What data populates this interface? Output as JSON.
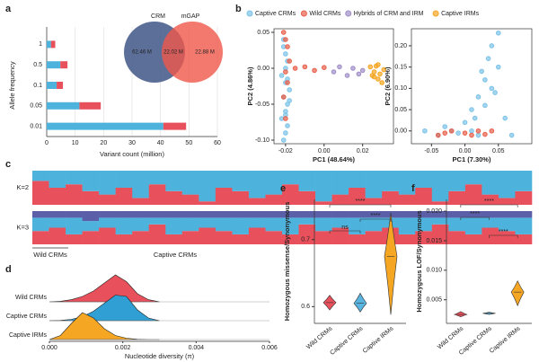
{
  "chart_data": [
    {
      "type": "bar",
      "panel": "a",
      "orientation": "horizontal",
      "x_label": "Variant count (million)",
      "y_label": "Allele frequency",
      "categories": [
        "1",
        "0.5",
        "0.1",
        "0.05",
        "0.01"
      ],
      "series": [
        {
          "color": "#4eb3dc",
          "values": [
            1.5,
            4.8,
            3.5,
            11.5,
            41
          ]
        },
        {
          "color": "#e8505b",
          "values": [
            1.5,
            2.5,
            2.2,
            7.5,
            8
          ]
        }
      ],
      "xlim": [
        0,
        60
      ],
      "xticks": [
        0,
        10,
        20,
        30,
        40,
        50,
        60
      ],
      "grid": true
    },
    {
      "type": "venn",
      "sets": [
        "CRM",
        "mGAP"
      ],
      "colors": [
        "#4a5f8e",
        "#f0584a"
      ],
      "values": [
        62.46,
        22.02,
        22.88
      ],
      "value_labels": [
        "62.46 M",
        "22.02 M",
        "22.88 M"
      ]
    },
    {
      "type": "scatter",
      "panel": "b",
      "x_label": "PC1 (48.64%)",
      "y_label": "PC2 (4.86%)",
      "series": [
        {
          "name": "Captive CRMs",
          "color": "#7cc3e8",
          "x": [
            -0.021,
            -0.02,
            -0.019,
            -0.022,
            -0.02,
            -0.018,
            -0.021,
            -0.019,
            -0.02,
            -0.022,
            -0.019,
            -0.02,
            -0.021,
            -0.018,
            -0.02,
            -0.019,
            -0.021,
            -0.02
          ],
          "y": [
            0.04,
            0.02,
            0.01,
            -0.01,
            -0.02,
            -0.03,
            -0.04,
            -0.05,
            -0.06,
            -0.07,
            -0.08,
            -0.09,
            -0.1,
            -0.045,
            0.0,
            -0.015,
            0.03,
            -0.065
          ]
        },
        {
          "name": "Wild CRMs",
          "color": "#e8604b",
          "x": [
            -0.021,
            -0.02,
            -0.019,
            -0.018,
            -0.02,
            -0.019,
            -0.015,
            -0.01,
            -0.005,
            0.0,
            -0.021,
            -0.02
          ],
          "y": [
            0.05,
            0.04,
            0.03,
            0.01,
            -0.005,
            -0.02,
            0.0,
            0.002,
            -0.003,
            0.001,
            -0.04,
            -0.07
          ]
        },
        {
          "name": "Hybrids of CRM and IRM",
          "color": "#a08fc8",
          "x": [
            0.005,
            0.008,
            0.012,
            0.015,
            0.018,
            0.02
          ],
          "y": [
            -0.005,
            0.002,
            -0.01,
            0.0,
            -0.008,
            -0.003
          ]
        },
        {
          "name": "Captive IRMs",
          "color": "#f5a623",
          "x": [
            0.024,
            0.025,
            0.026,
            0.027,
            0.028,
            0.029,
            0.03,
            0.031,
            0.026,
            0.028
          ],
          "y": [
            0.002,
            -0.01,
            -0.005,
            0.003,
            -0.015,
            -0.008,
            -0.02,
            -0.002,
            -0.012,
            0.005
          ]
        }
      ],
      "xlim": [
        -0.026,
        0.036
      ],
      "ylim": [
        -0.105,
        0.055
      ],
      "xticks": [
        -0.02,
        {
          "value": 0,
          "label": "0.00"
        },
        0.02
      ],
      "yticks": [
        {
          "value": -0.1,
          "label": "-0.10"
        },
        -0.05,
        {
          "value": 0,
          "label": "0.00"
        },
        0.05
      ]
    },
    {
      "type": "scatter",
      "x_label": "PC1 (7.30%)",
      "y_label": "PC2 (6.90%)",
      "series": [
        {
          "color": "#7cc3e8",
          "x": [
            -0.06,
            -0.04,
            -0.03,
            -0.02,
            -0.01,
            0.0,
            0.01,
            0.02,
            0.03,
            0.04,
            0.05,
            0.06,
            0.01,
            0.02,
            0.03,
            0.04,
            0.05,
            0.035,
            0.045,
            0.025,
            0.015,
            0.07
          ],
          "y": [
            0.0,
            -0.01,
            0.01,
            0.0,
            -0.005,
            0.02,
            0.05,
            0.08,
            0.12,
            0.1,
            0.15,
            0.03,
            0.0,
            -0.01,
            0.06,
            0.2,
            0.23,
            0.17,
            0.09,
            0.14,
            0.03,
            -0.01
          ]
        },
        {
          "color": "#e8604b",
          "x": [
            -0.04,
            -0.02,
            0.0,
            0.01,
            0.02,
            0.03,
            0.04,
            -0.03
          ],
          "y": [
            -0.01,
            0.0,
            -0.005,
            -0.01,
            0.0,
            -0.008,
            0.0,
            -0.005
          ]
        }
      ],
      "xlim": [
        -0.08,
        0.1
      ],
      "ylim": [
        -0.03,
        0.24
      ],
      "xticks": [
        -0.05,
        {
          "value": 0,
          "label": "0.00"
        },
        0.05
      ],
      "yticks": [
        {
          "value": 0,
          "label": "0.00"
        },
        0.05,
        {
          "value": 0.1,
          "label": "0.10"
        },
        0.15,
        {
          "value": 0.2,
          "label": "0.20"
        }
      ]
    },
    {
      "type": "admixture",
      "panel": "c",
      "groups": [
        "Wild CRMs",
        "Captive CRMs"
      ],
      "rows": [
        {
          "label": "K=2",
          "series": [
            {
              "color": "#e8505b",
              "values": [
                0.7,
                0.5,
                0.6,
                0.4,
                0.3,
                0.5,
                0.2,
                0.6,
                0.4,
                0.3,
                0.1,
                0.5,
                0.4,
                0.2,
                0.3,
                0.6,
                0.4,
                0.1,
                0.3,
                0.5,
                0.2,
                0.4,
                0.3,
                0.5,
                0.1,
                0.4,
                0.6,
                0.3,
                0.2,
                0.4
              ]
            },
            {
              "color": "#4eb3dc",
              "values": [
                0.3,
                0.5,
                0.4,
                0.6,
                0.7,
                0.5,
                0.8,
                0.4,
                0.6,
                0.7,
                0.9,
                0.5,
                0.6,
                0.8,
                0.7,
                0.4,
                0.6,
                0.9,
                0.7,
                0.5,
                0.8,
                0.6,
                0.7,
                0.5,
                0.9,
                0.6,
                0.4,
                0.7,
                0.8,
                0.6
              ]
            }
          ]
        },
        {
          "label": "K=3",
          "series": [
            {
              "color": "#e8505b",
              "values": [
                0.4,
                0.5,
                0.3,
                0.4,
                0.5,
                0.3,
                0.4,
                0.6,
                0.3,
                0.4,
                0.5,
                0.4,
                0.3,
                0.5,
                0.4,
                0.3,
                0.6,
                0.4,
                0.5,
                0.3,
                0.4,
                0.5,
                0.3,
                0.4,
                0.6,
                0.4,
                0.3,
                0.5,
                0.4,
                0.3
              ]
            },
            {
              "color": "#4eb3dc",
              "values": [
                0.4,
                0.3,
                0.5,
                0.3,
                0.3,
                0.5,
                0.4,
                0.2,
                0.5,
                0.4,
                0.3,
                0.4,
                0.5,
                0.3,
                0.4,
                0.5,
                0.2,
                0.4,
                0.3,
                0.5,
                0.4,
                0.3,
                0.5,
                0.4,
                0.2,
                0.4,
                0.5,
                0.3,
                0.4,
                0.5
              ]
            },
            {
              "color": "#5b5fa8",
              "values": [
                0.2,
                0.2,
                0.2,
                0.3,
                0.2,
                0.2,
                0.2,
                0.2,
                0.2,
                0.2,
                0.2,
                0.2,
                0.2,
                0.2,
                0.2,
                0.2,
                0.2,
                0.2,
                0.2,
                0.2,
                0.2,
                0.2,
                0.2,
                0.2,
                0.2,
                0.2,
                0.2,
                0.2,
                0.2,
                0.2
              ]
            }
          ]
        }
      ]
    },
    {
      "type": "ridgeline",
      "panel": "d",
      "x_label": "Nucleotide diversity (π)",
      "x": [
        0,
        0.0003,
        0.0006,
        0.0009,
        0.0012,
        0.0015,
        0.0018,
        0.0021,
        0.0024,
        0.0027,
        0.003
      ],
      "series": [
        {
          "name": "Wild CRMs",
          "color": "#e8505b",
          "values": [
            0,
            0.02,
            0.08,
            0.2,
            0.4,
            0.7,
            1,
            0.75,
            0.3,
            0.08,
            0
          ]
        },
        {
          "name": "Captive CRMs",
          "color": "#2f9fd4",
          "values": [
            0,
            0.01,
            0.05,
            0.15,
            0.35,
            0.65,
            0.95,
            0.9,
            0.4,
            0.1,
            0
          ]
        },
        {
          "name": "Captive IRMs",
          "color": "#f5a623",
          "values": [
            0,
            0.15,
            0.6,
            1,
            0.8,
            0.4,
            0.15,
            0.05,
            0.01,
            0,
            0
          ]
        }
      ],
      "xlim": [
        0,
        0.006
      ],
      "xticks": [
        {
          "value": 0,
          "label": "0.000"
        },
        0.002,
        0.004,
        0.006
      ]
    },
    {
      "type": "violin",
      "panel": "e",
      "y_label": "Homozygous missense/Synonymous",
      "categories": [
        "Wild CRMs",
        "Captive CRMs",
        "Captive IRMs"
      ],
      "colors": [
        "#e8505b",
        "#5ab4e0",
        "#f5a623"
      ],
      "min": [
        0.595,
        0.592,
        0.588
      ],
      "median": [
        0.606,
        0.605,
        0.675
      ],
      "max": [
        0.617,
        0.62,
        0.74
      ],
      "ylim": [
        0.575,
        0.76
      ],
      "yticks": [
        0.6,
        0.7
      ],
      "comparisons": [
        "ns",
        "****",
        "****"
      ]
    },
    {
      "type": "violin",
      "panel": "f",
      "y_label": "Homozygous LOF/Synonymous",
      "categories": [
        "Wild CRMs",
        "Captive CRMs",
        "Captive IRMs"
      ],
      "colors": [
        "#e8505b",
        "#5ab4e0",
        "#f5a623"
      ],
      "min": [
        0.0021,
        0.0025,
        0.004
      ],
      "median": [
        0.0025,
        0.0027,
        0.0063
      ],
      "max": [
        0.003,
        0.0029,
        0.0082
      ],
      "ylim": [
        0.001,
        0.022
      ],
      "yticks": [
        0.005,
        {
          "value": 0.01,
          "label": "0.010"
        },
        0.015,
        {
          "value": 0.02,
          "label": "0.020"
        }
      ],
      "comparisons": [
        "****",
        "****",
        "****"
      ]
    }
  ]
}
